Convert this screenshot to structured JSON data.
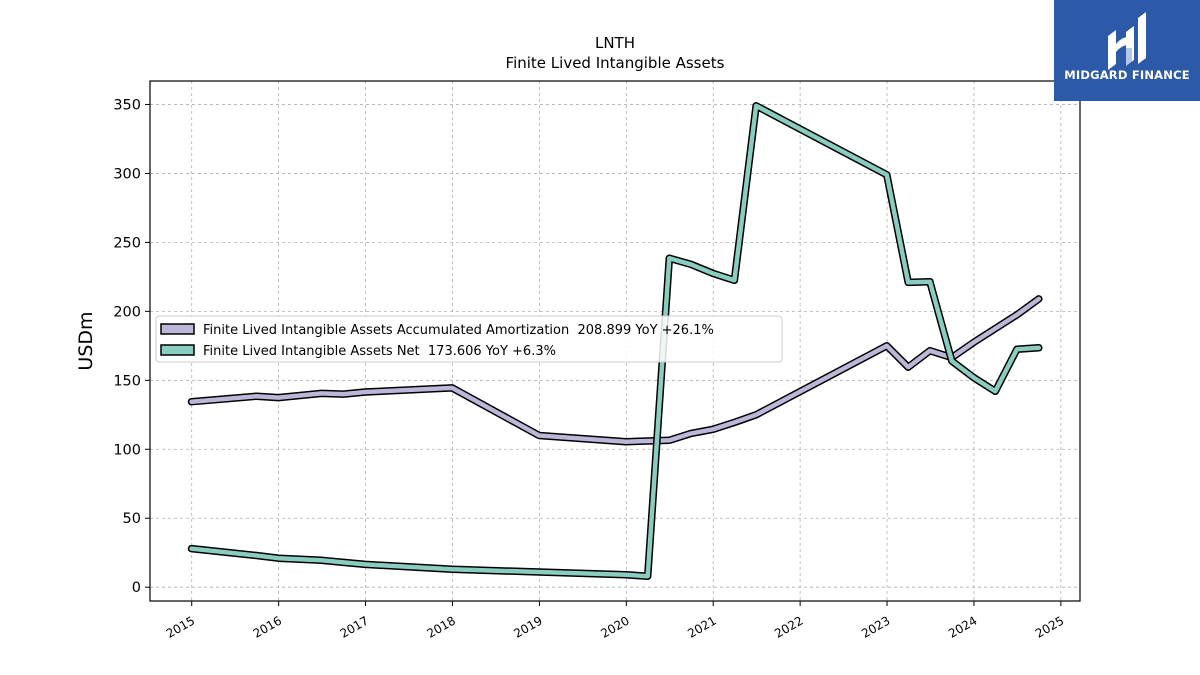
{
  "logo": {
    "text": "MIDGARD FINANCE"
  },
  "chart_data": {
    "type": "line",
    "title": "LNTH",
    "subtitle": "Finite Lived Intangible Assets",
    "ylabel": "USDm",
    "xlabel": "",
    "ylim": [
      -10,
      367
    ],
    "xlim": [
      2014.52,
      2025.22
    ],
    "grid": true,
    "legend_position": "center-left",
    "y_ticks": [
      0,
      50,
      100,
      150,
      200,
      250,
      300,
      350
    ],
    "x_ticks": [
      "2015",
      "2016",
      "2017",
      "2018",
      "2019",
      "2020",
      "2021",
      "2022",
      "2023",
      "2024",
      "2025"
    ],
    "series": [
      {
        "name": "Finite Lived Intangible Assets Accumulated Amortization  208.899 YoY +26.1%",
        "color": "#bcb6d8",
        "x": [
          "2014-12-31",
          "2015-09-30",
          "2015-12-31",
          "2016-06-30",
          "2016-09-30",
          "2016-12-31",
          "2017-12-31",
          "2018-12-31",
          "2019-12-31",
          "2020-03-31",
          "2020-06-30",
          "2020-09-30",
          "2020-12-31",
          "2021-03-31",
          "2021-06-30",
          "2022-12-31",
          "2023-03-31",
          "2023-06-30",
          "2023-09-30",
          "2023-12-31",
          "2024-06-30",
          "2024-09-30"
        ],
        "values": [
          134.5,
          138.5,
          137.5,
          140.5,
          140,
          141.5,
          144.5,
          110,
          105.5,
          106,
          106.5,
          111.5,
          114.5,
          119.5,
          125,
          175,
          159.5,
          171.5,
          166.5,
          177.5,
          197.5,
          209
        ]
      },
      {
        "name": "Finite Lived Intangible Assets Net  173.606 YoY +6.3%",
        "color": "#88cdbf",
        "x": [
          "2014-12-31",
          "2015-09-30",
          "2015-12-31",
          "2016-06-30",
          "2016-09-30",
          "2016-12-31",
          "2017-12-31",
          "2018-12-31",
          "2019-12-31",
          "2020-03-31",
          "2020-06-30",
          "2020-09-30",
          "2020-12-31",
          "2021-03-31",
          "2021-06-30",
          "2022-12-31",
          "2023-03-31",
          "2023-06-30",
          "2023-09-30",
          "2023-12-31",
          "2024-03-31",
          "2024-06-30",
          "2024-09-30"
        ],
        "values": [
          28,
          23,
          21,
          19.5,
          18,
          16.5,
          13,
          11,
          9,
          8,
          238.5,
          234,
          227.5,
          222.5,
          349,
          299,
          221,
          221.5,
          164,
          152,
          142,
          172.5,
          173.6
        ]
      }
    ]
  }
}
